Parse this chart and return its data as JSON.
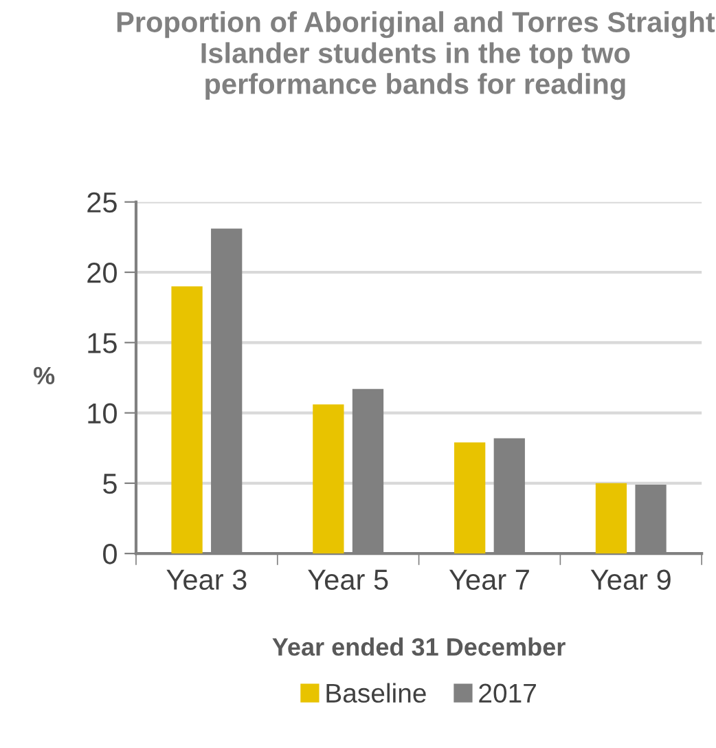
{
  "chart_data": {
    "type": "bar",
    "title": "Proportion of Aboriginal and Torres Straight Islander students in the top two performance bands for reading",
    "xlabel": "Year ended 31 December",
    "ylabel": "%",
    "categories": [
      "Year 3",
      "Year 5",
      "Year 7",
      "Year 9"
    ],
    "series": [
      {
        "name": "Baseline",
        "color": "#e8c300",
        "values": [
          19.0,
          10.6,
          7.9,
          5.0
        ]
      },
      {
        "name": "2017",
        "color": "#808080",
        "values": [
          23.1,
          11.7,
          8.2,
          4.9
        ]
      }
    ],
    "ylim": [
      0,
      25
    ],
    "yticks": [
      0,
      5,
      10,
      15,
      20,
      25
    ],
    "grid": "y",
    "legend": "bottom"
  }
}
